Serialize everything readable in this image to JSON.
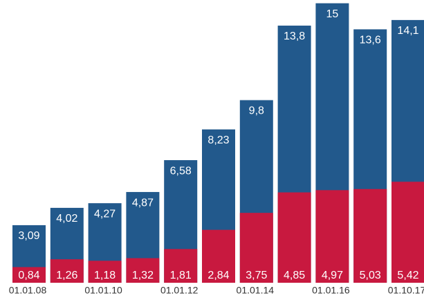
{
  "chart_data": {
    "type": "bar",
    "categories": [
      "01.01.08",
      null,
      "01.01.10",
      null,
      "01.01.12",
      null,
      "01.01.14",
      null,
      "01.01.16",
      null,
      "01.10.17"
    ],
    "ylim": [
      0,
      15.1
    ],
    "series": [
      {
        "color": "#22598c",
        "values": [
          3.09,
          4.02,
          4.27,
          4.87,
          6.58,
          8.23,
          9.8,
          13.8,
          15,
          13.6,
          14.1
        ],
        "value_labels": [
          "3,09",
          "4,02",
          "4,27",
          "4,87",
          "6,58",
          "8,23",
          "9,8",
          "13,8",
          "15",
          "13,6",
          "14,1"
        ]
      },
      {
        "color": "#c8193f",
        "values": [
          0.84,
          1.26,
          1.18,
          1.32,
          1.81,
          2.84,
          3.75,
          4.85,
          4.97,
          5.03,
          5.42
        ],
        "value_labels": [
          "0,84",
          "1,26",
          "1,18",
          "1,32",
          "1,81",
          "2,84",
          "3,75",
          "4,85",
          "4,97",
          "5,03",
          "5,42"
        ]
      }
    ]
  }
}
